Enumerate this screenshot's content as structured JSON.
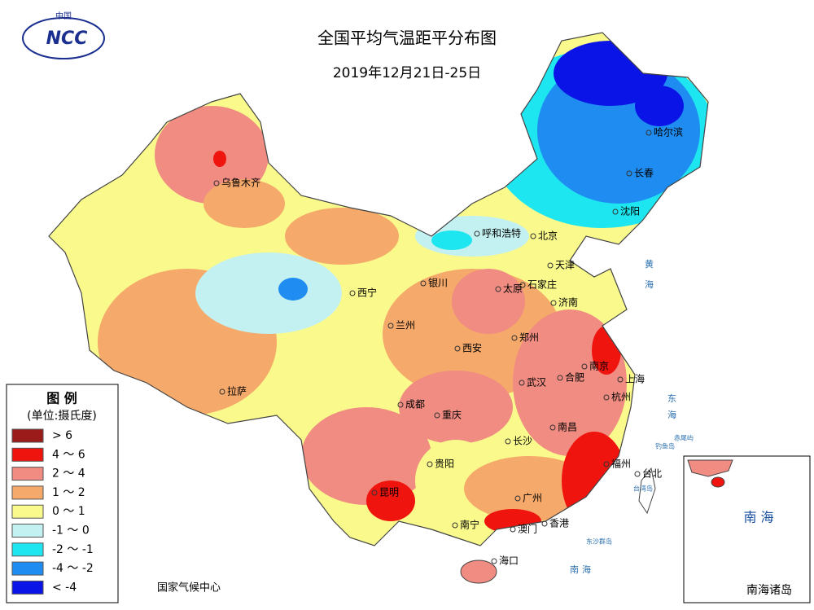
{
  "logo": {
    "top": "中国",
    "text": "NCC"
  },
  "header": {
    "title": "全国平均气温距平分布图",
    "subtitle": "2019年12月21日-25日"
  },
  "legend": {
    "title": "图 例",
    "unit": "(单位:摄氏度)",
    "items": [
      {
        "label": "> 6",
        "color": "#9b1b1b"
      },
      {
        "label": "4 ～ 6",
        "color": "#f0140f"
      },
      {
        "label": "2 ～ 4",
        "color": "#f08c82"
      },
      {
        "label": "1 ～ 2",
        "color": "#f5a96a"
      },
      {
        "label": "0 ～ 1",
        "color": "#fafa8c"
      },
      {
        "label": "-1 ～ 0",
        "color": "#c3f0f0"
      },
      {
        "label": "-2 ～ -1",
        "color": "#1ee6f0"
      },
      {
        "label": "-4 ～ -2",
        "color": "#1e8cf0"
      },
      {
        "label": "< -4",
        "color": "#0a14e6"
      }
    ]
  },
  "cities": [
    "哈尔滨",
    "长春",
    "沈阳",
    "北京",
    "呼和浩特",
    "天津",
    "石家庄",
    "太原",
    "济南",
    "银川",
    "西宁",
    "兰州",
    "郑州",
    "西安",
    "乌鲁木齐",
    "拉萨",
    "成都",
    "重庆",
    "武汉",
    "合肥",
    "南京",
    "上海",
    "杭州",
    "南昌",
    "长沙",
    "贵阳",
    "昆明",
    "南宁",
    "广州",
    "澳门",
    "香港",
    "福州",
    "台北",
    "海口"
  ],
  "seas": [
    "黄",
    "海",
    "东",
    "海",
    "南",
    "海"
  ],
  "islands": [
    "东沙群岛",
    "钓鱼岛",
    "赤尾屿",
    "台湾岛"
  ],
  "source": "国家气候中心",
  "inset": {
    "sea": "南 海",
    "title": "南海诸岛"
  }
}
